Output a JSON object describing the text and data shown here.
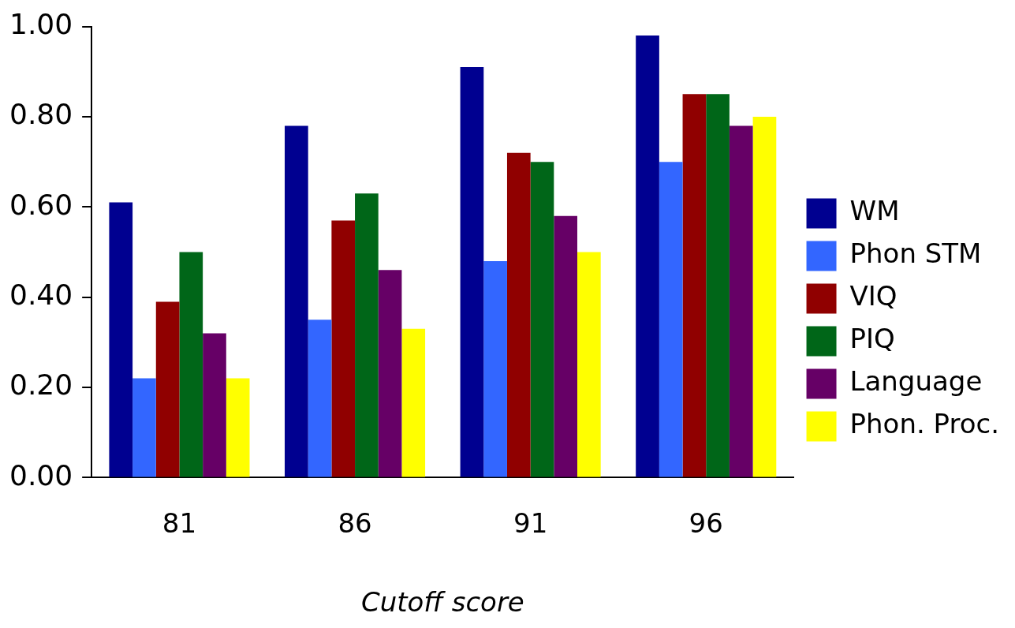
{
  "chart_data": {
    "type": "bar",
    "xlabel": "Cutoff score",
    "categories": [
      "81",
      "86",
      "91",
      "96"
    ],
    "series": [
      {
        "name": "WM",
        "color": "#000090",
        "values": [
          0.61,
          0.78,
          0.91,
          0.98
        ]
      },
      {
        "name": "Phon STM",
        "color": "#3366ff",
        "values": [
          0.22,
          0.35,
          0.48,
          0.7
        ]
      },
      {
        "name": "VIQ",
        "color": "#900000",
        "values": [
          0.39,
          0.57,
          0.72,
          0.85
        ]
      },
      {
        "name": "PIQ",
        "color": "#006618",
        "values": [
          0.5,
          0.63,
          0.7,
          0.85
        ]
      },
      {
        "name": "Language",
        "color": "#660066",
        "values": [
          0.32,
          0.46,
          0.58,
          0.78
        ]
      },
      {
        "name": "Phon. Proc.",
        "color": "#ffff00",
        "values": [
          0.22,
          0.33,
          0.5,
          0.8
        ]
      }
    ],
    "ylim": [
      0,
      1
    ],
    "yticks": [
      {
        "value": 0,
        "label": "0.00"
      },
      {
        "value": 0.2,
        "label": "0.20"
      },
      {
        "value": 0.4,
        "label": "0.40"
      },
      {
        "value": 0.6,
        "label": "0.60"
      },
      {
        "value": 0.8,
        "label": "0.80"
      },
      {
        "value": 1,
        "label": "1.00"
      }
    ],
    "grid": false,
    "legend": "right"
  }
}
